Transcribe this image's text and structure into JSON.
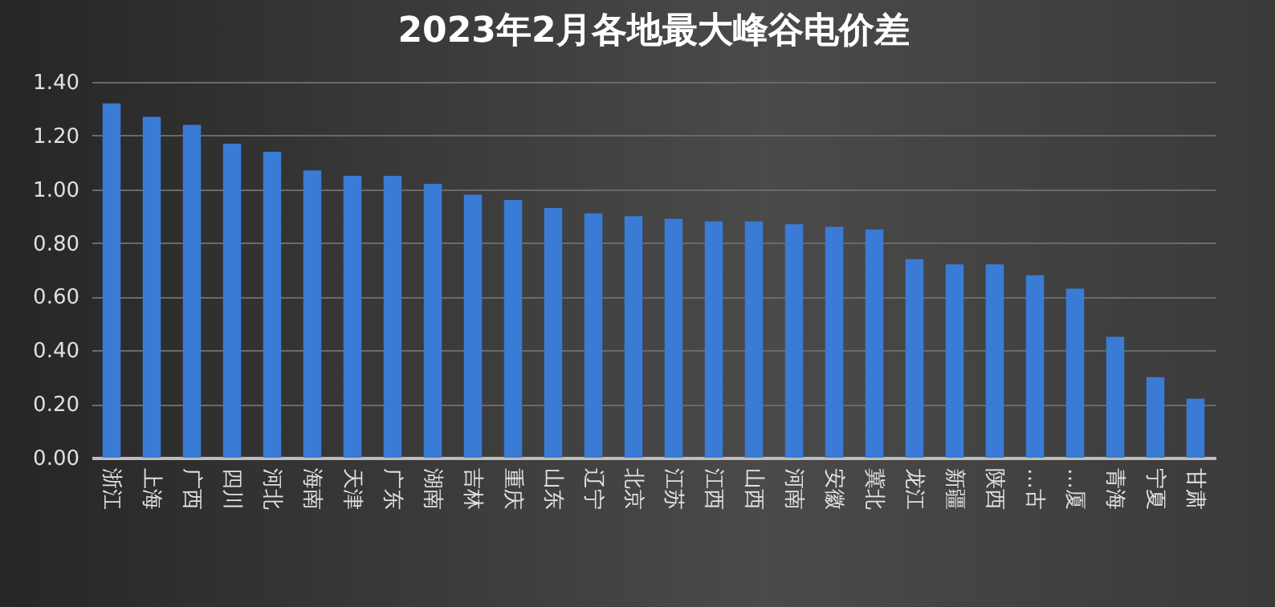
{
  "chart_data": {
    "type": "bar",
    "title": "2023年2月各地最大峰谷电价差",
    "categories": [
      "浙江",
      "上海",
      "广西",
      "四川",
      "河北",
      "海南",
      "天津",
      "广东",
      "湖南",
      "吉林",
      "重庆",
      "山东",
      "辽宁",
      "北京",
      "江苏",
      "江西",
      "山西",
      "河南",
      "安徽",
      "冀北",
      "龙江",
      "新疆",
      "陕西",
      "…古",
      "…厦",
      "青海",
      "宁夏",
      "甘肃"
    ],
    "values": [
      1.32,
      1.27,
      1.24,
      1.17,
      1.14,
      1.07,
      1.05,
      1.05,
      1.02,
      0.98,
      0.96,
      0.93,
      0.91,
      0.9,
      0.89,
      0.88,
      0.88,
      0.87,
      0.86,
      0.85,
      0.74,
      0.72,
      0.72,
      0.68,
      0.63,
      0.45,
      0.3,
      0.22
    ],
    "color": "#3a7bd5",
    "ylim": [
      0,
      1.4
    ],
    "yticks": [
      {
        "value": 0,
        "label": "0.00"
      },
      {
        "value": 0.2,
        "label": "0.20"
      },
      {
        "value": 0.4,
        "label": "0.40"
      },
      {
        "value": 0.6,
        "label": "0.60"
      },
      {
        "value": 0.8,
        "label": "0.80"
      },
      {
        "value": 1.0,
        "label": "1.00"
      },
      {
        "value": 1.2,
        "label": "1.20"
      },
      {
        "value": 1.4,
        "label": "1.40"
      }
    ],
    "grid": "y"
  }
}
